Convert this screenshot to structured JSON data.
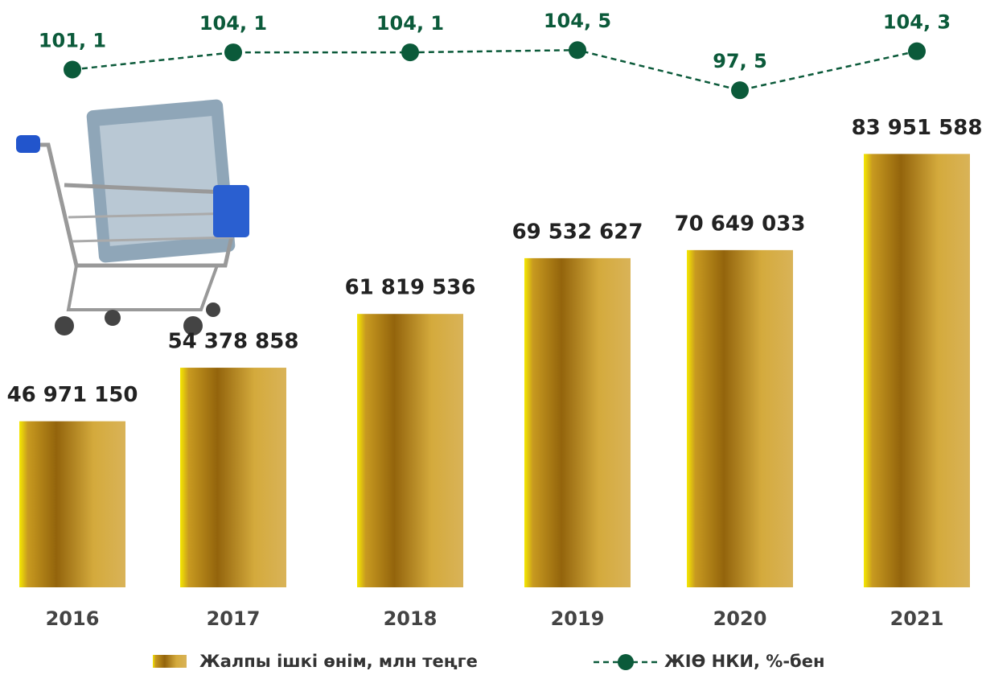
{
  "chart_data": {
    "type": "bar_line",
    "categories": [
      "2016",
      "2017",
      "2018",
      "2019",
      "2020",
      "2021"
    ],
    "series": [
      {
        "name": "Жалпы ішкі өнім, млн теңге",
        "type": "bar",
        "color": "#b8860b",
        "values": [
          46971150,
          54378858,
          61819536,
          69532627,
          70649033,
          83951588
        ],
        "value_labels": [
          "46 971 150",
          "54 378 858",
          "61 819 536",
          "69 532 627",
          "70 649 033",
          "83 951 588"
        ]
      },
      {
        "name": "ЖІӨ НКИ, %-бен",
        "type": "line",
        "axis": "y2",
        "color": "#0b5a3a",
        "values": [
          101.1,
          104.1,
          104.1,
          104.5,
          97.5,
          104.3
        ],
        "value_labels": [
          "101, 1",
          "104, 1",
          "104, 1",
          "104, 5",
          "97, 5",
          "104, 3"
        ]
      }
    ],
    "ylim": [
      24000000,
      90000000
    ],
    "y2lim": [
      95,
      110
    ],
    "legend": "bottom"
  }
}
